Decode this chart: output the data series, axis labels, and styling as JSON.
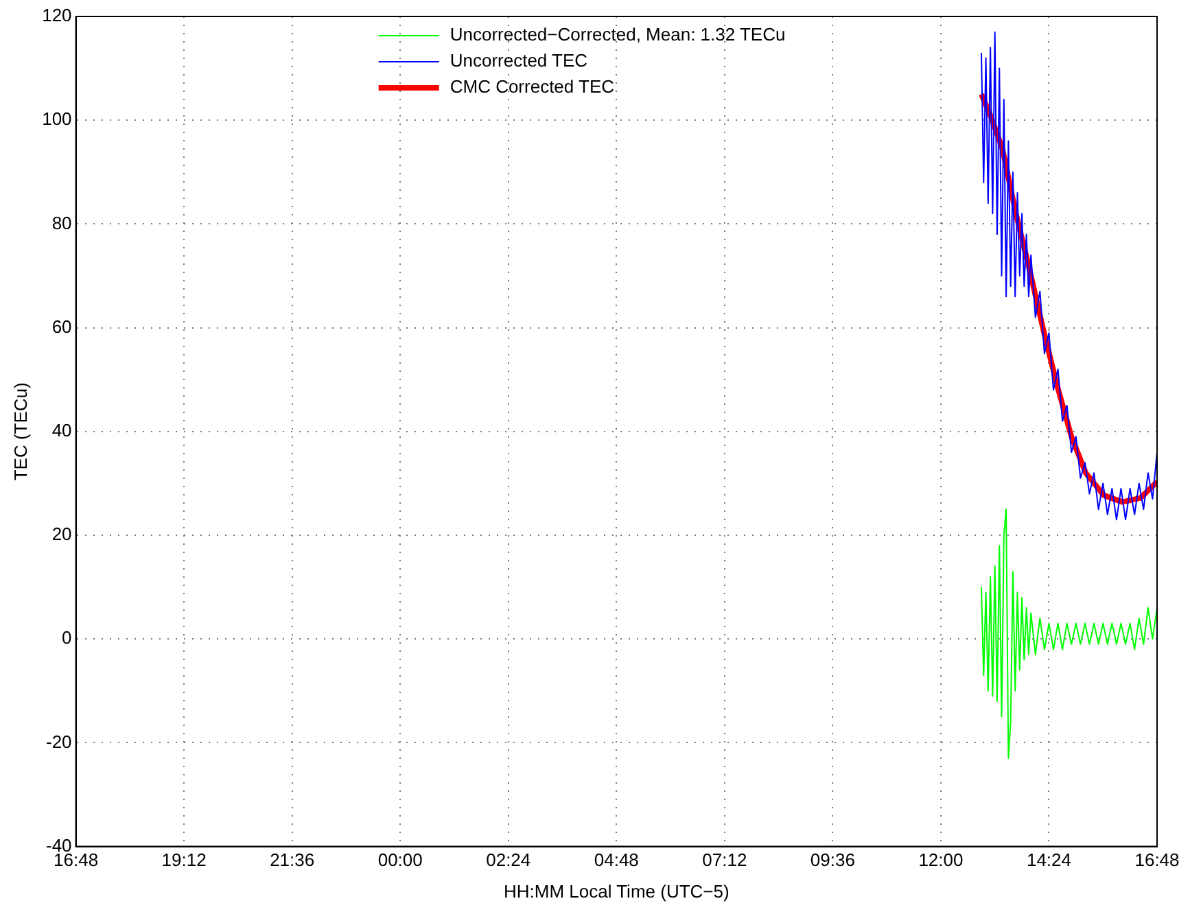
{
  "chart_data": {
    "type": "line",
    "xlabel": "HH:MM Local Time (UTC−5)",
    "ylabel": "TEC (TECu)",
    "xlim": [
      "--01-01T16:48",
      "--01-02T16:48"
    ],
    "xticks": [
      {
        "value": "--01-01T16:48",
        "label": "16:48"
      },
      {
        "value": "--01-01T19:12",
        "label": "19:12"
      },
      {
        "value": "--01-01T21:36",
        "label": "21:36"
      },
      {
        "value": "--01-02T00:00",
        "label": "00:00"
      },
      {
        "value": "--01-02T02:24",
        "label": "02:24"
      },
      {
        "value": "--01-02T04:48",
        "label": "04:48"
      },
      {
        "value": "--01-02T07:12",
        "label": "07:12"
      },
      {
        "value": "--01-02T09:36",
        "label": "09:36"
      },
      {
        "value": "--01-02T12:00",
        "label": "12:00"
      },
      {
        "value": "--01-02T14:24",
        "label": "14:24"
      },
      {
        "value": "--01-02T16:48",
        "label": "16:48"
      }
    ],
    "ylim": [
      -40,
      120
    ],
    "yticks": [
      -40,
      -20,
      0,
      20,
      40,
      60,
      80,
      100,
      120
    ],
    "grid": true,
    "legend": "top",
    "marker": "none",
    "series": [
      {
        "name": "Uncorrected−Corrected, Mean: 1.32 TECu",
        "color": "#00ff00",
        "x": [
          "--01-02T12:54",
          "--01-02T12:57",
          "--01-02T13:00",
          "--01-02T13:03",
          "--01-02T13:06",
          "--01-02T13:09",
          "--01-02T13:12",
          "--01-02T13:15",
          "--01-02T13:18",
          "--01-02T13:21",
          "--01-02T13:24",
          "--01-02T13:27",
          "--01-02T13:30",
          "--01-02T13:33",
          "--01-02T13:36",
          "--01-02T13:39",
          "--01-02T13:42",
          "--01-02T13:45",
          "--01-02T13:48",
          "--01-02T13:51",
          "--01-02T13:54",
          "--01-02T13:57",
          "--01-02T14:00",
          "--01-02T14:06",
          "--01-02T14:12",
          "--01-02T14:18",
          "--01-02T14:24",
          "--01-02T14:30",
          "--01-02T14:36",
          "--01-02T14:42",
          "--01-02T14:48",
          "--01-02T14:54",
          "--01-02T15:00",
          "--01-02T15:06",
          "--01-02T15:12",
          "--01-02T15:18",
          "--01-02T15:24",
          "--01-02T15:30",
          "--01-02T15:36",
          "--01-02T15:42",
          "--01-02T15:48",
          "--01-02T15:54",
          "--01-02T16:00",
          "--01-02T16:06",
          "--01-02T16:12",
          "--01-02T16:18",
          "--01-02T16:24",
          "--01-02T16:30",
          "--01-02T16:36",
          "--01-02T16:42",
          "--01-02T16:48"
        ],
        "values": [
          10,
          -7,
          9,
          -10,
          12,
          -11,
          14,
          -12,
          18,
          -15,
          20,
          25,
          -23,
          -16,
          13,
          -10,
          9,
          -6,
          8,
          -4,
          6,
          -3,
          5,
          -3,
          4,
          -2,
          3,
          -2,
          3,
          -2,
          3,
          -1,
          3,
          -1,
          3,
          -1,
          3,
          -1,
          3,
          -1,
          3,
          -1,
          3,
          -1,
          3,
          -2,
          4,
          -1,
          6,
          0,
          6
        ]
      },
      {
        "name": "Uncorrected TEC",
        "color": "#0000ff",
        "x": [
          "--01-02T12:54",
          "--01-02T12:57",
          "--01-02T13:00",
          "--01-02T13:03",
          "--01-02T13:06",
          "--01-02T13:09",
          "--01-02T13:12",
          "--01-02T13:15",
          "--01-02T13:18",
          "--01-02T13:21",
          "--01-02T13:24",
          "--01-02T13:27",
          "--01-02T13:30",
          "--01-02T13:33",
          "--01-02T13:36",
          "--01-02T13:39",
          "--01-02T13:42",
          "--01-02T13:45",
          "--01-02T13:48",
          "--01-02T13:51",
          "--01-02T13:54",
          "--01-02T13:57",
          "--01-02T14:00",
          "--01-02T14:06",
          "--01-02T14:12",
          "--01-02T14:18",
          "--01-02T14:24",
          "--01-02T14:30",
          "--01-02T14:36",
          "--01-02T14:42",
          "--01-02T14:48",
          "--01-02T14:54",
          "--01-02T15:00",
          "--01-02T15:06",
          "--01-02T15:12",
          "--01-02T15:18",
          "--01-02T15:24",
          "--01-02T15:30",
          "--01-02T15:36",
          "--01-02T15:42",
          "--01-02T15:48",
          "--01-02T15:54",
          "--01-02T16:00",
          "--01-02T16:06",
          "--01-02T16:12",
          "--01-02T16:18",
          "--01-02T16:24",
          "--01-02T16:30",
          "--01-02T16:36",
          "--01-02T16:42",
          "--01-02T16:48"
        ],
        "values": [
          113,
          88,
          112,
          84,
          114,
          82,
          117,
          78,
          110,
          70,
          104,
          66,
          96,
          68,
          90,
          66,
          86,
          70,
          82,
          68,
          78,
          66,
          74,
          62,
          67,
          55,
          59,
          48,
          52,
          42,
          45,
          36,
          39,
          31,
          34,
          28,
          32,
          25,
          30,
          24,
          29,
          23,
          29,
          23,
          29,
          24,
          30,
          25,
          32,
          27,
          36
        ]
      },
      {
        "name": "CMC Corrected TEC",
        "color": "#ff0000",
        "x": [
          "--01-02T12:54",
          "--01-02T13:07",
          "--01-02T13:22",
          "--01-02T13:40",
          "--01-02T13:59",
          "--01-02T14:17",
          "--01-02T14:35",
          "--01-02T14:54",
          "--01-02T15:13",
          "--01-02T15:37",
          "--01-02T16:02",
          "--01-02T16:26",
          "--01-02T16:48"
        ],
        "values": [
          105,
          100.6,
          94.5,
          82,
          70.7,
          59.3,
          48.8,
          39,
          32,
          27.7,
          26.4,
          27.2,
          30.3
        ]
      }
    ]
  }
}
